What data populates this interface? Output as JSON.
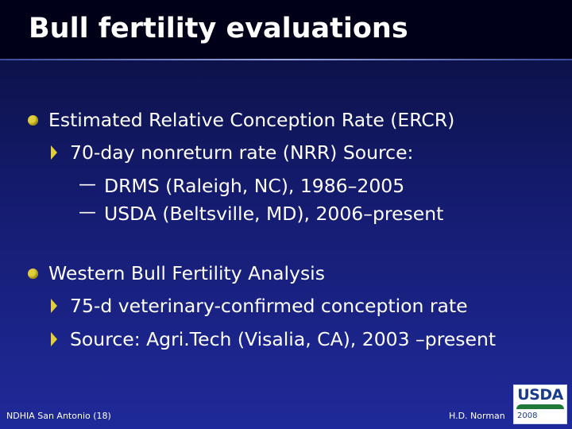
{
  "slide": {
    "title": "Bull fertility evaluations",
    "bullets": [
      {
        "text": "Estimated Relative Conception Rate (ERCR)",
        "subbullets": [
          {
            "text": "70-day nonreturn rate (NRR) Source:",
            "items": [
              "DRMS (Raleigh, NC), 1986–2005",
              "USDA (Beltsville, MD), 2006–present"
            ]
          }
        ]
      },
      {
        "text": "Western Bull Fertility Analysis",
        "subbullets": [
          {
            "text": "75-d veterinary-confirmed conception rate"
          },
          {
            "text": "Source: Agri.Tech (Visalia, CA), 2003 –present"
          }
        ]
      }
    ],
    "dash_symbol": "—"
  },
  "footer": {
    "left": "NDHIA San Antonio (18)",
    "right": "H.D. Norman"
  },
  "logo": {
    "letters": "USDA",
    "year": "2008"
  },
  "colors": {
    "bullet": "#e0ce3a",
    "title_bar": "#000018",
    "background_top": "#0a0e3a",
    "background_bottom": "#1f2a9a"
  }
}
